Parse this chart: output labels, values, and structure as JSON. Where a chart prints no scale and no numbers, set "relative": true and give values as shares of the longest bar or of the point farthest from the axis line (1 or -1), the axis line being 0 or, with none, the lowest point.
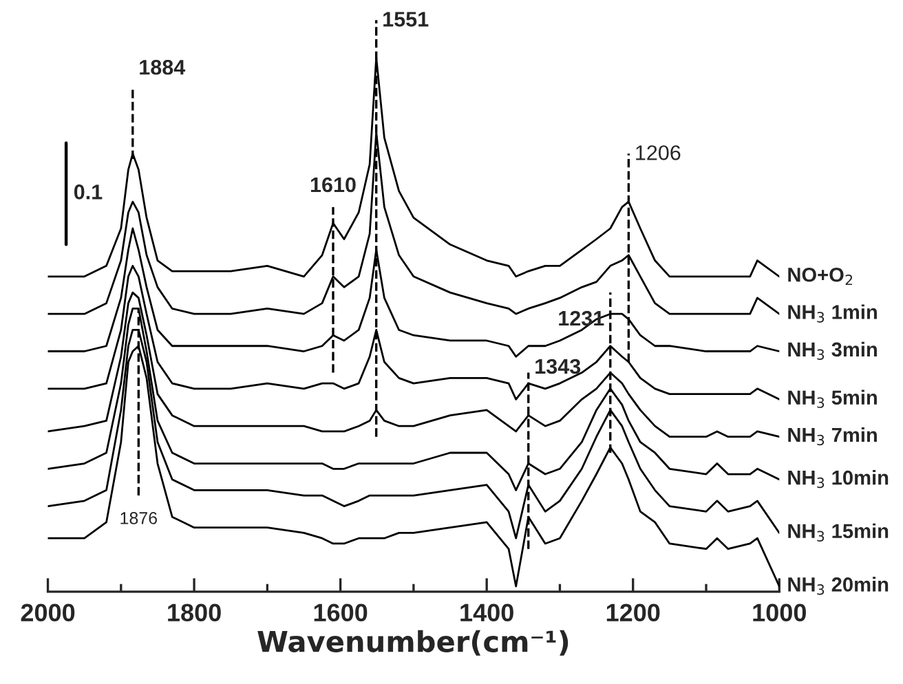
{
  "chart_data": {
    "type": "line",
    "relative": true,
    "xlabel": "Wavenumber(cm⁻¹)",
    "x": [
      2000,
      1950,
      1920,
      1900,
      1890,
      1884,
      1876,
      1865,
      1850,
      1830,
      1800,
      1750,
      1700,
      1650,
      1625,
      1610,
      1595,
      1575,
      1560,
      1551,
      1540,
      1520,
      1500,
      1450,
      1400,
      1370,
      1360,
      1343,
      1320,
      1300,
      1270,
      1250,
      1231,
      1215,
      1206,
      1190,
      1170,
      1150,
      1100,
      1085,
      1070,
      1040,
      1030,
      1000
    ],
    "xlim": [
      2000,
      1000
    ],
    "xticks": [
      2000,
      {
        "value": 1900,
        "label": null
      },
      1800,
      {
        "value": 1700,
        "label": null
      },
      1600,
      {
        "value": 1500,
        "label": null
      },
      1400,
      {
        "value": 1300,
        "label": null
      },
      1200,
      {
        "value": 1100,
        "label": null
      },
      1000
    ],
    "tick_labels": "x",
    "line_style": "solid",
    "series": [
      {
        "name": "NO+O$_{2}$",
        "color": "#000000",
        "values": [
          0.59,
          0.59,
          0.61,
          0.68,
          0.79,
          0.82,
          0.79,
          0.7,
          0.62,
          0.6,
          0.6,
          0.6,
          0.61,
          0.59,
          0.63,
          0.69,
          0.66,
          0.71,
          0.8,
          1,
          0.85,
          0.75,
          0.7,
          0.65,
          0.62,
          0.61,
          0.59,
          0.6,
          0.61,
          0.61,
          0.64,
          0.66,
          0.68,
          0.72,
          0.73,
          0.68,
          0.62,
          0.59,
          0.59,
          0.59,
          0.59,
          0.59,
          0.62,
          0.59
        ]
      },
      {
        "name": "NH$_{3}$ 1min",
        "color": "#000000",
        "values": [
          0.52,
          0.52,
          0.54,
          0.62,
          0.71,
          0.73,
          0.71,
          0.63,
          0.57,
          0.53,
          0.52,
          0.52,
          0.53,
          0.52,
          0.54,
          0.59,
          0.57,
          0.59,
          0.67,
          0.86,
          0.72,
          0.63,
          0.59,
          0.56,
          0.54,
          0.53,
          0.52,
          0.53,
          0.54,
          0.55,
          0.57,
          0.58,
          0.61,
          0.62,
          0.63,
          0.59,
          0.54,
          0.52,
          0.52,
          0.52,
          0.52,
          0.52,
          0.55,
          0.52
        ]
      },
      {
        "name": "NH$_{3}$ 3min",
        "color": "#000000",
        "values": [
          0.45,
          0.45,
          0.46,
          0.55,
          0.64,
          0.68,
          0.64,
          0.57,
          0.49,
          0.46,
          0.46,
          0.46,
          0.46,
          0.45,
          0.46,
          0.48,
          0.47,
          0.49,
          0.55,
          0.64,
          0.55,
          0.49,
          0.48,
          0.47,
          0.47,
          0.46,
          0.44,
          0.46,
          0.46,
          0.47,
          0.49,
          0.51,
          0.52,
          0.52,
          0.51,
          0.48,
          0.46,
          0.46,
          0.45,
          0.45,
          0.45,
          0.45,
          0.46,
          0.45
        ]
      },
      {
        "name": "NH$_{3}$ 5min",
        "color": "#000000",
        "values": [
          0.38,
          0.38,
          0.39,
          0.49,
          0.59,
          0.61,
          0.59,
          0.52,
          0.43,
          0.39,
          0.38,
          0.38,
          0.39,
          0.38,
          0.39,
          0.39,
          0.38,
          0.39,
          0.44,
          0.49,
          0.43,
          0.4,
          0.39,
          0.4,
          0.4,
          0.39,
          0.36,
          0.39,
          0.38,
          0.39,
          0.41,
          0.43,
          0.46,
          0.44,
          0.43,
          0.4,
          0.38,
          0.37,
          0.37,
          0.37,
          0.37,
          0.37,
          0.38,
          0.36
        ]
      },
      {
        "name": "NH$_{3}$ 7min",
        "color": "#000000",
        "values": [
          0.3,
          0.31,
          0.32,
          0.44,
          0.54,
          0.56,
          0.55,
          0.48,
          0.37,
          0.33,
          0.31,
          0.31,
          0.31,
          0.31,
          0.3,
          0.3,
          0.3,
          0.31,
          0.32,
          0.34,
          0.32,
          0.31,
          0.31,
          0.33,
          0.34,
          0.31,
          0.3,
          0.33,
          0.31,
          0.32,
          0.36,
          0.38,
          0.41,
          0.39,
          0.37,
          0.34,
          0.31,
          0.29,
          0.29,
          0.3,
          0.29,
          0.29,
          0.3,
          0.29
        ]
      },
      {
        "name": "NH$_{3}$ 10min",
        "color": "#000000",
        "values": [
          0.23,
          0.24,
          0.26,
          0.39,
          0.5,
          0.53,
          0.53,
          0.45,
          0.32,
          0.26,
          0.24,
          0.24,
          0.24,
          0.24,
          0.24,
          0.23,
          0.23,
          0.24,
          0.24,
          0.24,
          0.24,
          0.24,
          0.24,
          0.26,
          0.26,
          0.22,
          0.19,
          0.24,
          0.22,
          0.23,
          0.28,
          0.34,
          0.38,
          0.35,
          0.32,
          0.28,
          0.26,
          0.23,
          0.22,
          0.24,
          0.22,
          0.22,
          0.23,
          0.21
        ]
      },
      {
        "name": "NH$_{3}$ 15min",
        "color": "#000000",
        "values": [
          0.16,
          0.17,
          0.19,
          0.34,
          0.46,
          0.49,
          0.49,
          0.43,
          0.28,
          0.21,
          0.19,
          0.19,
          0.19,
          0.18,
          0.18,
          0.17,
          0.16,
          0.17,
          0.18,
          0.18,
          0.18,
          0.18,
          0.18,
          0.19,
          0.2,
          0.15,
          0.1,
          0.2,
          0.15,
          0.17,
          0.23,
          0.29,
          0.34,
          0.31,
          0.28,
          0.23,
          0.19,
          0.16,
          0.15,
          0.17,
          0.15,
          0.16,
          0.17,
          0.11
        ]
      },
      {
        "name": "NH$_{3}$ 20min",
        "color": "#000000",
        "values": [
          0.1,
          0.1,
          0.13,
          0.28,
          0.43,
          0.45,
          0.46,
          0.4,
          0.24,
          0.14,
          0.12,
          0.12,
          0.12,
          0.11,
          0.1,
          0.09,
          0.09,
          0.1,
          0.1,
          0.1,
          0.1,
          0.11,
          0.11,
          0.12,
          0.13,
          0.08,
          0.01,
          0.14,
          0.09,
          0.1,
          0.17,
          0.22,
          0.27,
          0.24,
          0.21,
          0.15,
          0.13,
          0.09,
          0.08,
          0.1,
          0.08,
          0.09,
          0.1,
          0.01
        ]
      }
    ],
    "ref_lines": [
      {
        "axis": "x",
        "value": 1884,
        "label": "1884",
        "line_style": "dashed",
        "color": "#000000"
      },
      {
        "axis": "x",
        "value": 1551,
        "label": "1551",
        "line_style": "dashed",
        "color": "#000000"
      },
      {
        "axis": "x",
        "value": 1610,
        "label": "1610",
        "line_style": "dashed",
        "color": "#000000"
      },
      {
        "axis": "x",
        "value": 1206,
        "label": "1206",
        "line_style": "dashed",
        "color": "#000000"
      },
      {
        "axis": "x",
        "value": 1343,
        "label": "1343",
        "line_style": "dashed",
        "color": "#000000"
      },
      {
        "axis": "x",
        "value": 1231,
        "label": "1231",
        "line_style": "dashed",
        "color": "#000000"
      },
      {
        "axis": "x",
        "value": 1876,
        "label": "1876",
        "line_style": "dashed",
        "color": "#000000"
      }
    ],
    "annotations": [
      "0.1"
    ]
  }
}
